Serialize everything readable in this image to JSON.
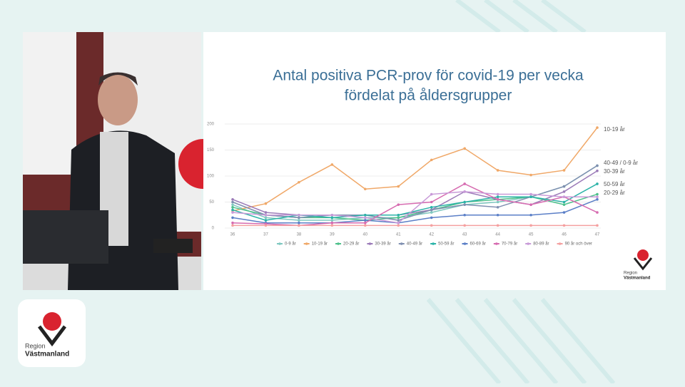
{
  "chart_data": {
    "type": "line",
    "title": "Antal positiva PCR-prov för covid-19 per vecka",
    "subtitle": "fördelat på åldersgrupper",
    "categories": [
      "36",
      "37",
      "38",
      "39",
      "40",
      "41",
      "42",
      "43",
      "44",
      "45",
      "46",
      "47"
    ],
    "ylim": [
      0,
      200
    ],
    "yticks": [
      0,
      50,
      100,
      150,
      200
    ],
    "grid": true,
    "series": [
      {
        "name": "0-9 år",
        "color": "#7fc8c0",
        "values": [
          45,
          20,
          15,
          15,
          20,
          20,
          30,
          45,
          50,
          60,
          80,
          120
        ]
      },
      {
        "name": "10-19 år",
        "color": "#f0a868",
        "values": [
          33,
          47,
          88,
          122,
          75,
          80,
          131,
          153,
          111,
          102,
          111,
          193
        ]
      },
      {
        "name": "20-29 år",
        "color": "#4cc08a",
        "values": [
          40,
          25,
          20,
          20,
          15,
          20,
          35,
          50,
          55,
          60,
          45,
          65
        ]
      },
      {
        "name": "30-39 år",
        "color": "#9b7bb8",
        "values": [
          55,
          30,
          25,
          25,
          25,
          25,
          35,
          70,
          55,
          45,
          70,
          110
        ]
      },
      {
        "name": "40-49 år",
        "color": "#7f8fb0",
        "values": [
          50,
          25,
          20,
          25,
          25,
          15,
          35,
          45,
          40,
          60,
          80,
          120
        ]
      },
      {
        "name": "50-59 år",
        "color": "#2bb3a8",
        "values": [
          35,
          15,
          25,
          20,
          25,
          25,
          40,
          50,
          60,
          60,
          50,
          85
        ]
      },
      {
        "name": "60-69 år",
        "color": "#5b7fc7",
        "values": [
          20,
          10,
          10,
          10,
          15,
          10,
          20,
          25,
          25,
          25,
          30,
          55
        ]
      },
      {
        "name": "70-79 år",
        "color": "#d66bb0",
        "values": [
          10,
          8,
          5,
          10,
          10,
          45,
          50,
          85,
          55,
          45,
          60,
          30
        ]
      },
      {
        "name": "80-89 år",
        "color": "#c89ad8",
        "values": [
          30,
          25,
          25,
          25,
          20,
          10,
          65,
          70,
          65,
          65,
          60,
          60
        ]
      },
      {
        "name": "90 år och över",
        "color": "#f4a0a0",
        "values": [
          5,
          5,
          5,
          5,
          5,
          5,
          5,
          5,
          5,
          5,
          5,
          5
        ]
      }
    ],
    "annotations": [
      "10-19 år",
      "40-49 / 0-9 år",
      "30-39 år",
      "50-59 år",
      "20-29 år"
    ]
  },
  "branding": {
    "region": "Region",
    "name": "Västmanland"
  }
}
